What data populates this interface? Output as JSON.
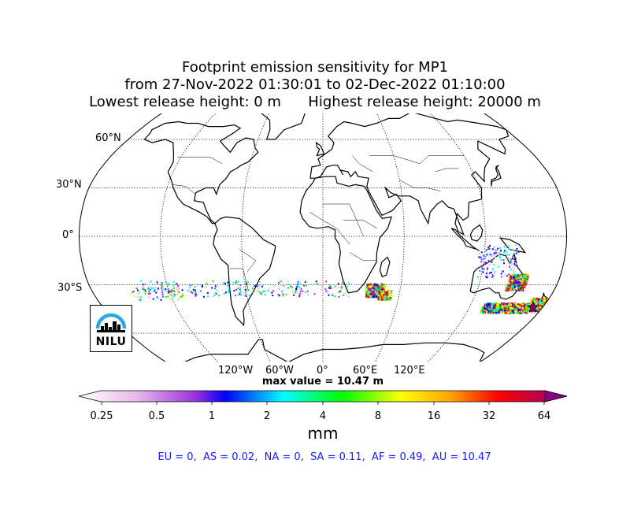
{
  "title": {
    "line1": "Footprint emission sensitivity for MP1",
    "line2": "from 27-Nov-2022 01:30:01 to 02-Dec-2022 01:10:00",
    "line3": "Lowest release height: 0 m      Highest release height: 20000 m"
  },
  "map": {
    "projection": "Robinson",
    "lat_labels": [
      "60°N",
      "30°N",
      "0°",
      "30°S"
    ],
    "lon_labels": [
      "120°W",
      "60°W",
      "0°",
      "60°E",
      "120°E"
    ],
    "graticule_style": "dotted"
  },
  "max_value": "max value = 10.47 m",
  "colorbar": {
    "ticks": [
      "0.25",
      "0.5",
      "1",
      "2",
      "4",
      "8",
      "16",
      "32",
      "64"
    ],
    "unit": "mm",
    "scale": "log2",
    "colors": [
      "#ffffff",
      "#e6b8ea",
      "#9b30d9",
      "#0000ff",
      "#00ffff",
      "#00ff00",
      "#ffff00",
      "#ffa500",
      "#ff0000",
      "#8b0080"
    ]
  },
  "region_summary": "EU = 0,  AS = 0.02,  NA = 0,  SA = 0.11,  AF = 0.49,  AU = 10.47",
  "logo": {
    "text": "NILU",
    "accent": "#29abe2"
  }
}
